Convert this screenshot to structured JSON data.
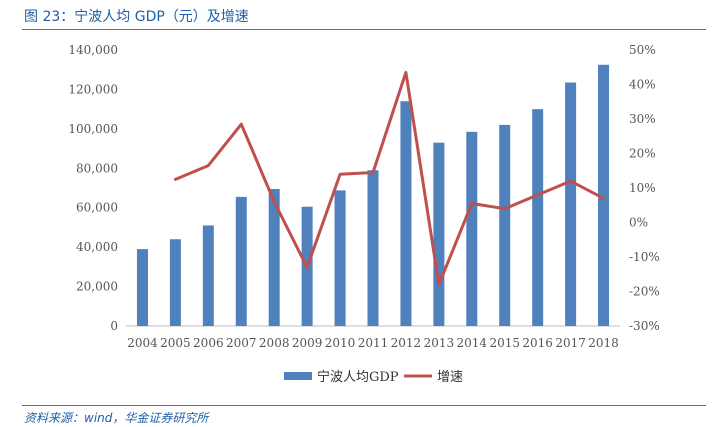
{
  "figure": {
    "title": "图 23：宁波人均 GDP（元）及增速",
    "source": "资料来源：wind，华金证券研究所"
  },
  "colors": {
    "bar": "#4f81bd",
    "line": "#c0504d",
    "rule": "#3a78c2",
    "title": "#1f5fa8"
  },
  "chart_data": {
    "type": "bar",
    "categories": [
      "2004",
      "2005",
      "2006",
      "2007",
      "2008",
      "2009",
      "2010",
      "2011",
      "2012",
      "2013",
      "2014",
      "2015",
      "2016",
      "2017",
      "2018"
    ],
    "series": [
      {
        "name": "宁波人均GDP",
        "type": "bar",
        "axis": "left",
        "values": [
          39000,
          44000,
          51000,
          65500,
          69500,
          60500,
          68800,
          79000,
          114000,
          93000,
          98500,
          102000,
          110000,
          123500,
          132500
        ]
      },
      {
        "name": "增速",
        "type": "line",
        "axis": "right",
        "values": [
          null,
          12.5,
          16.5,
          28.5,
          6.0,
          -13.0,
          14.0,
          14.5,
          43.5,
          -18.0,
          5.5,
          4.0,
          8.0,
          12.0,
          7.0
        ]
      }
    ],
    "y_left": {
      "min": 0,
      "max": 140000,
      "ticks": [
        "0",
        "20,000",
        "40,000",
        "60,000",
        "80,000",
        "100,000",
        "120,000",
        "140,000"
      ]
    },
    "y_right": {
      "min": -30,
      "max": 50,
      "ticks": [
        "-30%",
        "-20%",
        "-10%",
        "0%",
        "10%",
        "20%",
        "30%",
        "40%",
        "50%"
      ]
    },
    "legend": {
      "placement": "bottom",
      "items": [
        "宁波人均GDP",
        "增速"
      ]
    },
    "grid": false
  }
}
